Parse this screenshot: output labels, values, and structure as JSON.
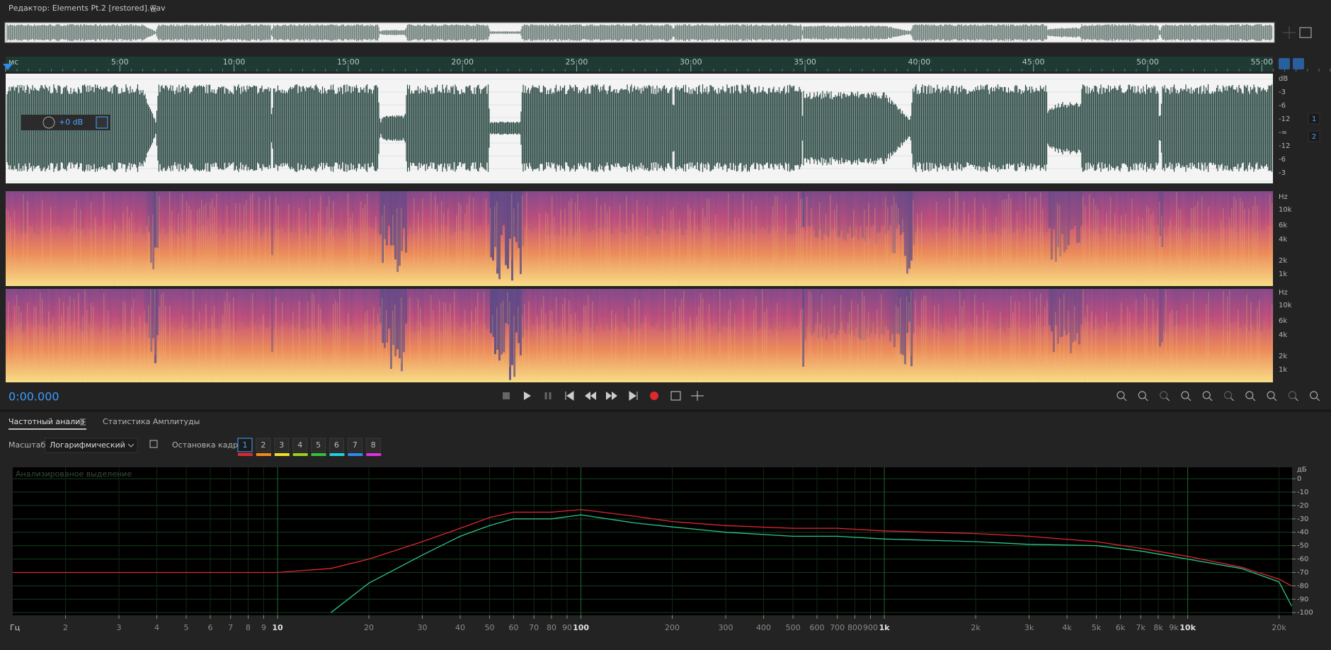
{
  "header": {
    "title": "Редактор: Elements Pt.2 [restored].wav"
  },
  "timeline": {
    "labels": [
      "мс",
      "5:00",
      "10:00",
      "15:00",
      "20:00",
      "25:00",
      "30:00",
      "35:00",
      "40:00",
      "45:00",
      "50:00",
      "55:00"
    ]
  },
  "waveform": {
    "volume": "+0 dB",
    "db_labels": [
      "dB",
      "-3",
      "-6",
      "-12",
      "-∞",
      "-12",
      "-6",
      "-3"
    ],
    "channels": [
      "1",
      "2"
    ]
  },
  "spectrogram": {
    "channels": [
      [
        "Hz",
        "10k",
        "6k",
        "4k",
        "2k",
        "1k"
      ],
      [
        "Hz",
        "10k",
        "6k",
        "4k",
        "2k",
        "1k"
      ]
    ]
  },
  "transport": {
    "time": "0:00.000"
  },
  "panel": {
    "tabs": [
      "Частотный анализ",
      "Статистика Амплитуды"
    ],
    "scale_label": "Масштаб:",
    "scale_value": "Логарифмический",
    "hold_label": "Остановка кадра:",
    "hold_buttons": [
      "1",
      "2",
      "3",
      "4",
      "5",
      "6",
      "7",
      "8"
    ]
  },
  "chart_data": {
    "type": "line",
    "annotation": "Анализированое выделение",
    "x_label": "Гц",
    "y_label": "дБ",
    "log_x": true,
    "grid": true,
    "x": [
      1.34,
      5,
      10,
      15,
      20,
      30,
      40,
      50,
      60,
      80,
      100,
      150,
      200,
      300,
      500,
      700,
      1000,
      2000,
      3000,
      5000,
      7000,
      10000,
      15000,
      20000,
      22000
    ],
    "series": [
      {
        "color": "#e0282d",
        "values": [
          -70,
          -70,
          -70,
          -67,
          -60,
          -47,
          -37,
          -29,
          -25,
          -25,
          -23,
          -28,
          -32,
          -35,
          -37,
          -37,
          -39,
          -41,
          -43,
          -47,
          -52,
          -58,
          -66,
          -75,
          -80
        ]
      },
      {
        "color": "#2ec48a",
        "values": [
          null,
          null,
          null,
          -100,
          -78,
          -57,
          -43,
          -35,
          -30,
          -30,
          -27,
          -33,
          -36,
          -40,
          -43,
          -43,
          -45,
          -47,
          -49,
          -50,
          -54,
          -60,
          -67,
          -77,
          -95
        ]
      }
    ],
    "xlim": [
      1.34,
      22080
    ],
    "ylim": [
      -102,
      8.5
    ],
    "xticks": [
      2,
      3,
      4,
      5,
      6,
      7,
      8,
      9,
      10,
      20,
      30,
      40,
      50,
      60,
      70,
      80,
      90,
      100,
      200,
      300,
      400,
      500,
      600,
      700,
      800,
      900,
      {
        "value": 1000,
        "label": "1k"
      },
      {
        "value": 2000,
        "label": "2k"
      },
      {
        "value": 3000,
        "label": "3k"
      },
      {
        "value": 4000,
        "label": "4k"
      },
      {
        "value": 5000,
        "label": "5k"
      },
      {
        "value": 6000,
        "label": "6k"
      },
      {
        "value": 7000,
        "label": "7k"
      },
      {
        "value": 8000,
        "label": "8k"
      },
      {
        "value": 9000,
        "label": "9k"
      },
      {
        "value": 10000,
        "label": "10k"
      },
      {
        "value": 20000,
        "label": "20k"
      }
    ],
    "yticks": [
      0,
      -10,
      -20,
      -30,
      -40,
      -50,
      -60,
      -70,
      -80,
      -90,
      -100
    ]
  }
}
